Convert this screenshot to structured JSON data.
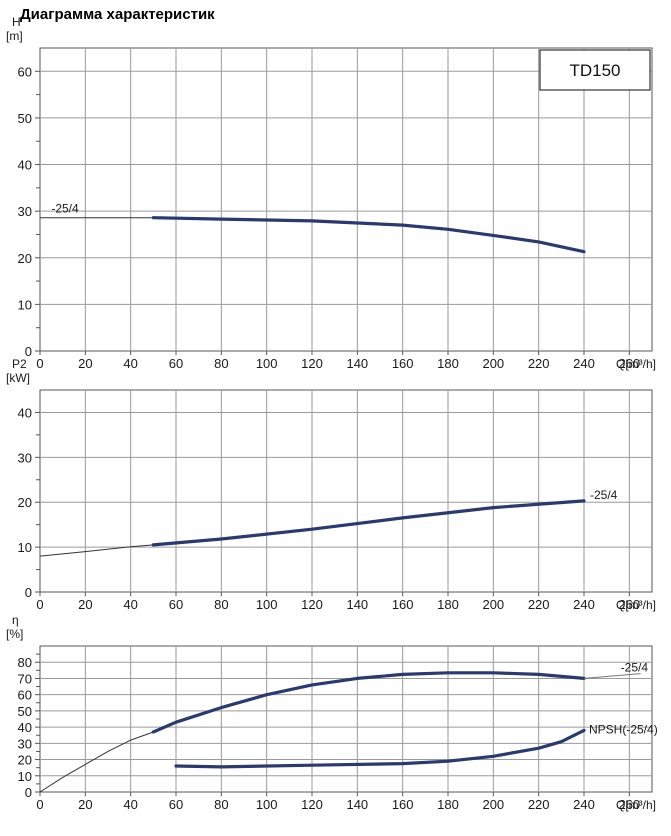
{
  "page": {
    "title": "Диаграмма характеристик"
  },
  "chart_data": [
    {
      "type": "line",
      "id": "head",
      "ylabel_symbol": "H",
      "ylabel_unit": "[m]",
      "xlabel": "Q[m³/h]",
      "xlim": [
        0,
        270
      ],
      "x_ticks": [
        0,
        20,
        40,
        60,
        80,
        100,
        120,
        140,
        160,
        180,
        200,
        220,
        240,
        260
      ],
      "ylim": [
        0,
        65
      ],
      "y_ticks": [
        0,
        10,
        20,
        30,
        40,
        50,
        60
      ],
      "model_label": "TD150",
      "series": [
        {
          "name": "-25/4",
          "thin": [
            [
              0,
              28.6
            ],
            [
              20,
              28.6
            ],
            [
              40,
              28.6
            ],
            [
              50,
              28.6
            ]
          ],
          "bold": [
            [
              50,
              28.6
            ],
            [
              80,
              28.3
            ],
            [
              120,
              27.9
            ],
            [
              160,
              27.0
            ],
            [
              180,
              26.1
            ],
            [
              200,
              24.8
            ],
            [
              220,
              23.4
            ],
            [
              240,
              21.3
            ]
          ]
        }
      ],
      "grid": true
    },
    {
      "type": "line",
      "id": "power",
      "ylabel_symbol": "P2",
      "ylabel_unit": "[kW]",
      "xlabel": "Q[m³/h]",
      "xlim": [
        0,
        270
      ],
      "x_ticks": [
        0,
        20,
        40,
        60,
        80,
        100,
        120,
        140,
        160,
        180,
        200,
        220,
        240,
        260
      ],
      "ylim": [
        0,
        45
      ],
      "y_ticks": [
        0,
        10,
        20,
        30,
        40
      ],
      "series": [
        {
          "name": "-25/4",
          "thin": [
            [
              0,
              8.0
            ],
            [
              20,
              9.0
            ],
            [
              40,
              10.1
            ],
            [
              50,
              10.5
            ]
          ],
          "bold": [
            [
              50,
              10.5
            ],
            [
              80,
              11.8
            ],
            [
              120,
              14.0
            ],
            [
              160,
              16.5
            ],
            [
              200,
              18.8
            ],
            [
              240,
              20.3
            ]
          ]
        }
      ],
      "grid": true
    },
    {
      "type": "line",
      "id": "efficiency",
      "ylabel_symbol": "η",
      "ylabel_unit": "[%]",
      "xlabel": "Q[m³/h]",
      "xlim": [
        0,
        270
      ],
      "x_ticks": [
        0,
        20,
        40,
        60,
        80,
        100,
        120,
        140,
        160,
        180,
        200,
        220,
        240,
        260
      ],
      "ylim": [
        0,
        90
      ],
      "y_ticks": [
        0,
        10,
        20,
        30,
        40,
        50,
        60,
        70,
        80
      ],
      "series": [
        {
          "name": "-25/4",
          "thin": [
            [
              0,
              0
            ],
            [
              10,
              9
            ],
            [
              20,
              17
            ],
            [
              30,
              25
            ],
            [
              40,
              32
            ],
            [
              50,
              37
            ]
          ],
          "bold": [
            [
              50,
              37
            ],
            [
              60,
              43
            ],
            [
              80,
              52
            ],
            [
              100,
              60
            ],
            [
              120,
              66
            ],
            [
              140,
              70
            ],
            [
              160,
              72.5
            ],
            [
              180,
              73.5
            ],
            [
              200,
              73.5
            ],
            [
              220,
              72.5
            ],
            [
              240,
              70
            ]
          ],
          "tail": [
            [
              240,
              70
            ],
            [
              265,
              73
            ]
          ]
        },
        {
          "name": "NPSH(-25/4)",
          "thin": [],
          "bold": [
            [
              60,
              16
            ],
            [
              80,
              15.5
            ],
            [
              120,
              16.5
            ],
            [
              160,
              17.5
            ],
            [
              180,
              19
            ],
            [
              200,
              22
            ],
            [
              220,
              27
            ],
            [
              230,
              31
            ],
            [
              240,
              38
            ]
          ]
        }
      ],
      "grid": true
    }
  ]
}
